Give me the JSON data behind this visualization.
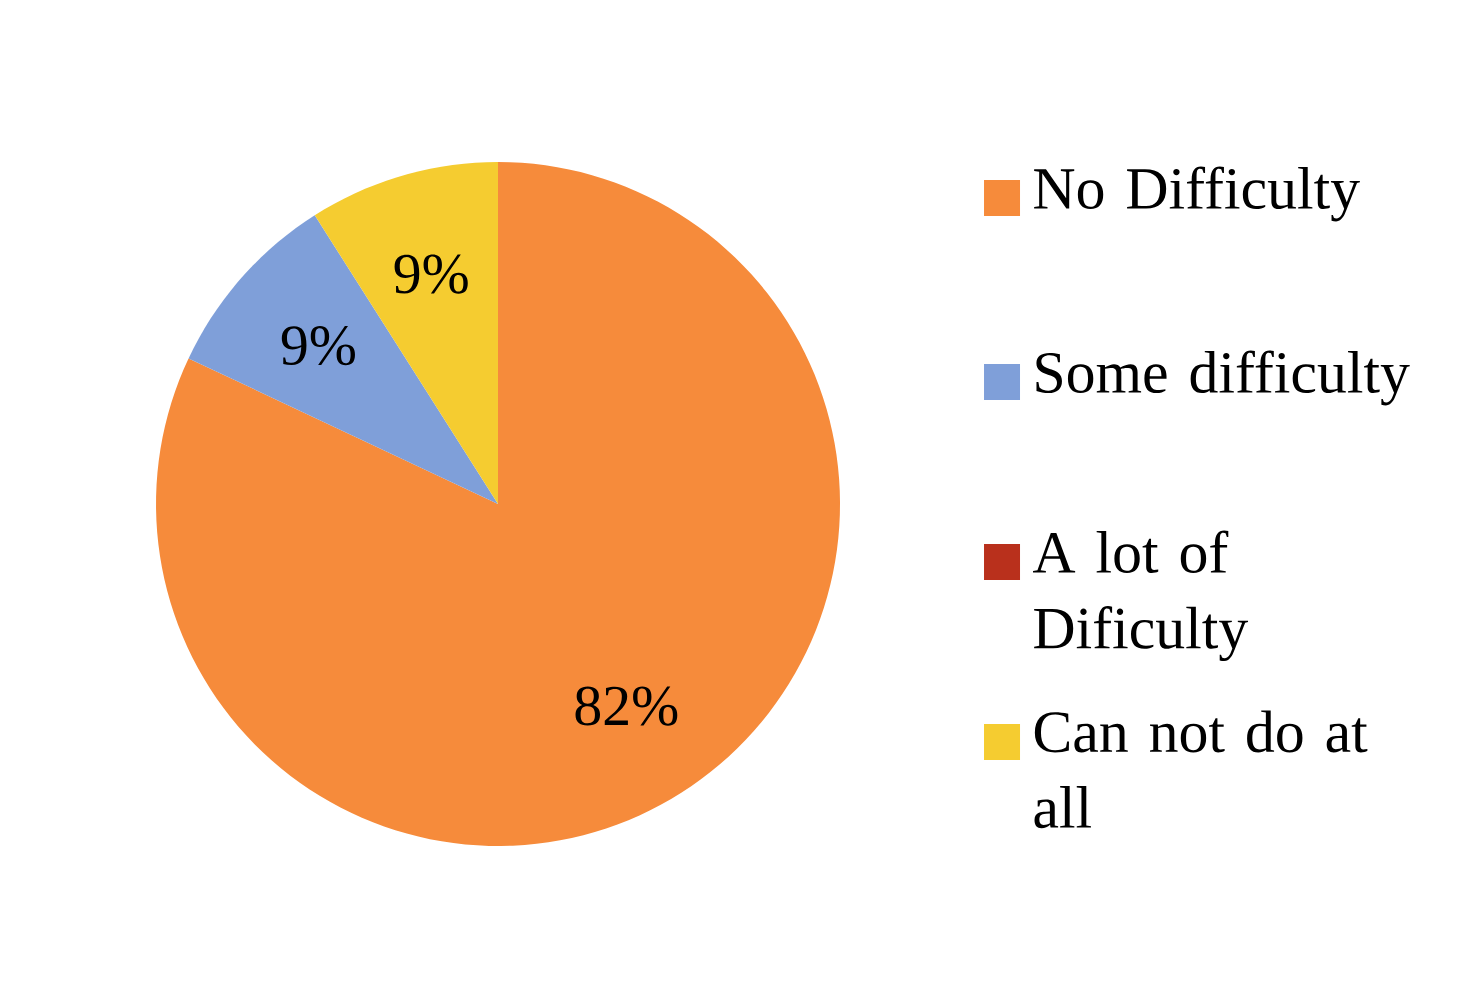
{
  "chart_data": {
    "type": "pie",
    "categories": [
      "No Difficulty",
      "Some difficulty",
      "A lot of Dificulty",
      "Can not do at all"
    ],
    "values": [
      82,
      9,
      0,
      9
    ],
    "colors": [
      "#F68B3B",
      "#7F9FD9",
      "#B9301C",
      "#F5CC30"
    ],
    "value_labels": [
      "82%",
      "9%",
      null,
      "9%"
    ],
    "legend": "right"
  }
}
